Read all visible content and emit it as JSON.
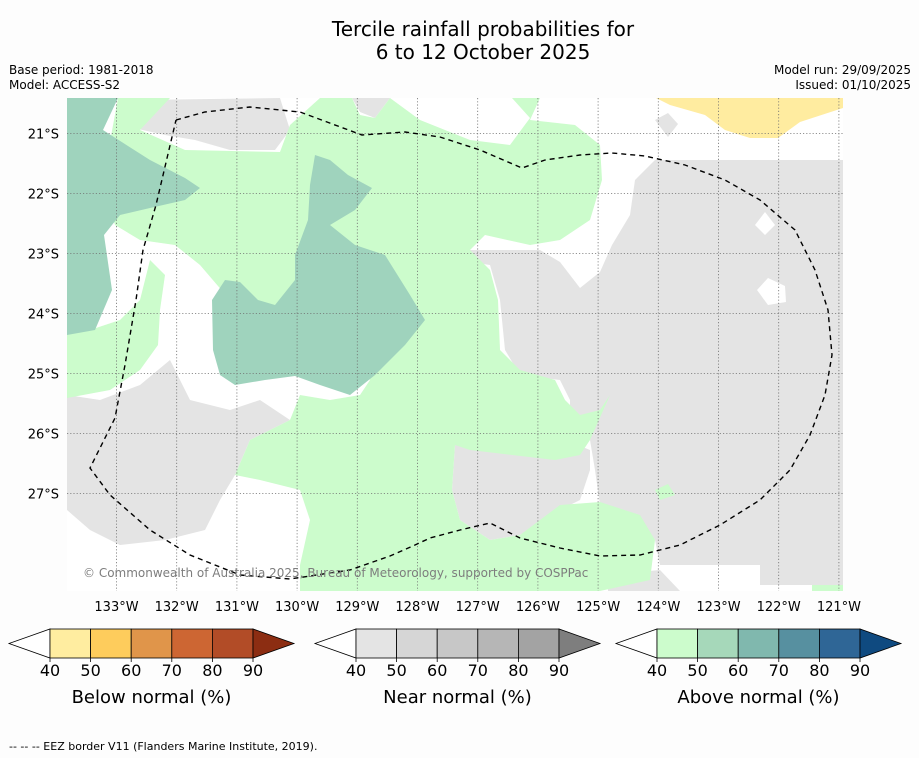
{
  "title_line1": "Tercile rainfall probabilities for",
  "title_line2": "6 to 12 October 2025",
  "base_period": "Base period: 1981-2018",
  "model": "Model: ACCESS-S2",
  "model_run": "Model run: 29/09/2025",
  "issued": "Issued: 01/10/2025",
  "map": {
    "lon_labels": [
      "133°W",
      "132°W",
      "131°W",
      "130°W",
      "129°W",
      "128°W",
      "127°W",
      "126°W",
      "125°W",
      "124°W",
      "123°W",
      "122°W",
      "121°W"
    ],
    "lat_labels": [
      "21°S",
      "22°S",
      "23°S",
      "24°S",
      "25°S",
      "26°S",
      "27°S"
    ],
    "copyright": "© Commonwealth of Australia 2025, Bureau of Meteorology, supported by COSPPac",
    "colors": {
      "near_normal": "#e4e4e4",
      "above_normal_40": "#ccfccc",
      "above_normal_50": "#9fd3bd",
      "below_normal_40": "#ffeca0",
      "background": "#ffffff"
    }
  },
  "legends": [
    {
      "label": "Below normal (%)",
      "ticks": [
        "40",
        "50",
        "60",
        "70",
        "80",
        "90"
      ],
      "colors": [
        "#ffeda0",
        "#fecc5c",
        "#e0954a",
        "#cd6633",
        "#b24c27",
        "#8c2d12"
      ]
    },
    {
      "label": "Near normal (%)",
      "ticks": [
        "40",
        "50",
        "60",
        "70",
        "80",
        "90"
      ],
      "colors": [
        "#e4e4e4",
        "#d6d6d6",
        "#c7c7c7",
        "#b6b6b6",
        "#a3a3a3",
        "#7e7e7e"
      ]
    },
    {
      "label": "Above normal (%)",
      "ticks": [
        "40",
        "50",
        "60",
        "70",
        "80",
        "90"
      ],
      "colors": [
        "#ccfccc",
        "#a6d8ba",
        "#80b8ae",
        "#5790a0",
        "#2f6696",
        "#0f4a80"
      ]
    }
  ],
  "footer": "--  --  -- EEZ border V11 (Flanders Marine Institute, 2019)."
}
